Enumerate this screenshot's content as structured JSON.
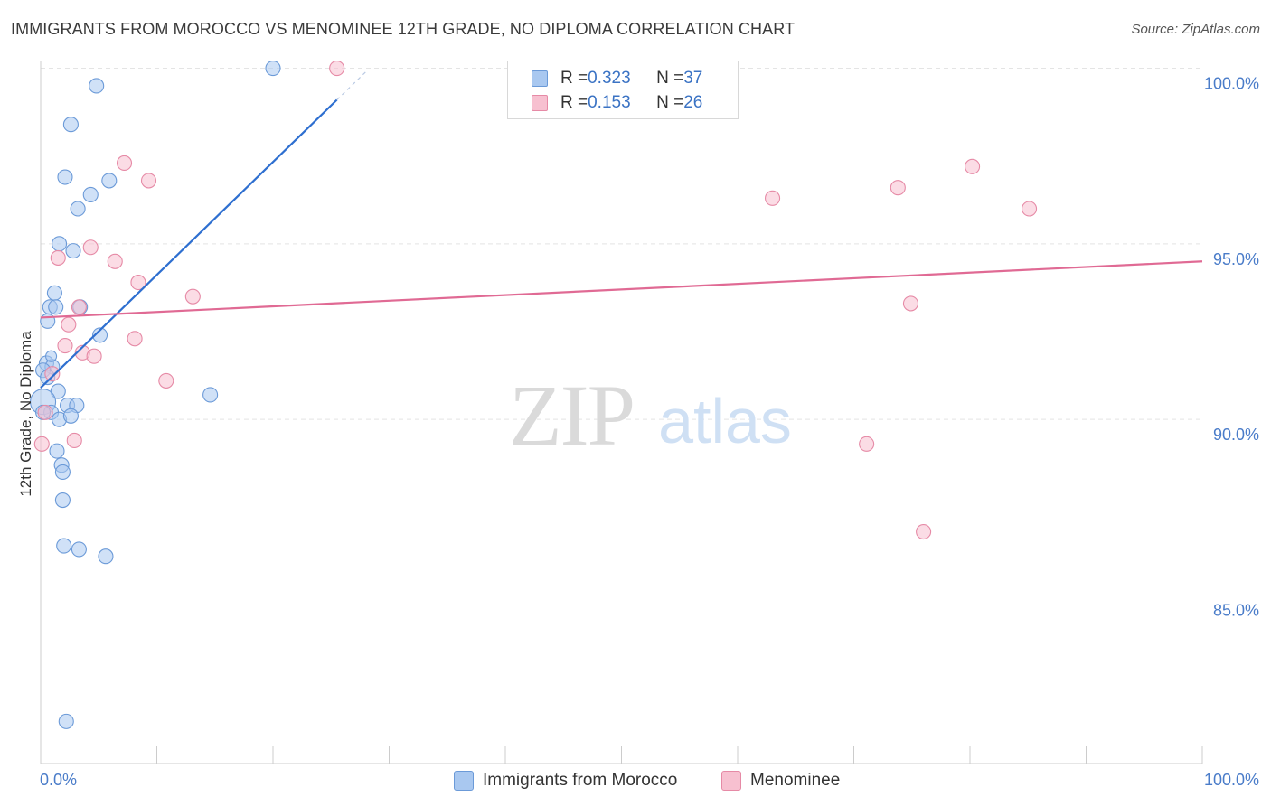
{
  "colors": {
    "blue_fill": "#a9c8f0",
    "blue_stroke": "#6b9ad8",
    "blue_line": "#2e6fd0",
    "pink_fill": "#f7c0d0",
    "pink_stroke": "#e68aa6",
    "pink_line": "#e06a94",
    "grid": "#e4e4e4",
    "axis_text": "#4a7cc9"
  },
  "chart_data": {
    "type": "scatter",
    "title": "IMMIGRANTS FROM MOROCCO VS MENOMINEE 12TH GRADE, NO DIPLOMA CORRELATION CHART",
    "source": "Source: ZipAtlas.com",
    "watermark": {
      "zip": "ZIP",
      "atlas": "atlas"
    },
    "ylabel": "12th Grade, No Diploma",
    "xlim": [
      0,
      100
    ],
    "ylim": [
      80.2,
      100.4
    ],
    "y_ticks": [
      {
        "value": 100,
        "label": "100.0%"
      },
      {
        "value": 95,
        "label": "95.0%"
      },
      {
        "value": 90,
        "label": "90.0%"
      },
      {
        "value": 85,
        "label": "85.0%"
      }
    ],
    "x_tick_labels": {
      "left": "0.0%",
      "right": "100.0%"
    },
    "x_minor_ticks": [
      0,
      10,
      20,
      30,
      40,
      50,
      60,
      70,
      80,
      90,
      100
    ],
    "legend": {
      "rows": [
        {
          "r_label": "R = ",
          "r_value": "0.323",
          "n_label": "N = ",
          "n_value": "37"
        },
        {
          "r_label": "R = ",
          "r_value": "0.153",
          "n_label": "N = ",
          "n_value": "26"
        }
      ]
    },
    "series": [
      {
        "name": "Immigrants from Morocco",
        "color": "blue",
        "trend": {
          "x0": 0,
          "y0": 90.9,
          "x1": 25.5,
          "y1": 99.1,
          "dash_to_x": 28.0,
          "dash_to_y": 99.9
        },
        "points": [
          {
            "x": 20.0,
            "y": 100.0,
            "r": 8
          },
          {
            "x": 4.8,
            "y": 99.5,
            "r": 8
          },
          {
            "x": 2.6,
            "y": 98.4,
            "r": 8
          },
          {
            "x": 2.1,
            "y": 96.9,
            "r": 8
          },
          {
            "x": 5.9,
            "y": 96.8,
            "r": 8
          },
          {
            "x": 4.3,
            "y": 96.4,
            "r": 8
          },
          {
            "x": 3.2,
            "y": 96.0,
            "r": 8
          },
          {
            "x": 1.6,
            "y": 95.0,
            "r": 8
          },
          {
            "x": 2.8,
            "y": 94.8,
            "r": 8
          },
          {
            "x": 1.2,
            "y": 93.6,
            "r": 8
          },
          {
            "x": 0.8,
            "y": 93.2,
            "r": 8
          },
          {
            "x": 1.3,
            "y": 93.2,
            "r": 8
          },
          {
            "x": 3.4,
            "y": 93.2,
            "r": 8
          },
          {
            "x": 0.6,
            "y": 92.8,
            "r": 8
          },
          {
            "x": 5.1,
            "y": 92.4,
            "r": 8
          },
          {
            "x": 0.5,
            "y": 91.6,
            "r": 8
          },
          {
            "x": 1.0,
            "y": 91.5,
            "r": 8
          },
          {
            "x": 0.2,
            "y": 91.4,
            "r": 8
          },
          {
            "x": 0.6,
            "y": 91.2,
            "r": 8
          },
          {
            "x": 1.5,
            "y": 90.8,
            "r": 8
          },
          {
            "x": 0.2,
            "y": 90.5,
            "r": 14
          },
          {
            "x": 14.6,
            "y": 90.7,
            "r": 8
          },
          {
            "x": 2.3,
            "y": 90.4,
            "r": 8
          },
          {
            "x": 3.1,
            "y": 90.4,
            "r": 8
          },
          {
            "x": 0.9,
            "y": 90.2,
            "r": 8
          },
          {
            "x": 1.6,
            "y": 90.0,
            "r": 8
          },
          {
            "x": 2.6,
            "y": 90.1,
            "r": 8
          },
          {
            "x": 1.4,
            "y": 89.1,
            "r": 8
          },
          {
            "x": 1.8,
            "y": 88.7,
            "r": 8
          },
          {
            "x": 1.9,
            "y": 88.5,
            "r": 8
          },
          {
            "x": 1.9,
            "y": 87.7,
            "r": 8
          },
          {
            "x": 2.0,
            "y": 86.4,
            "r": 8
          },
          {
            "x": 3.3,
            "y": 86.3,
            "r": 8
          },
          {
            "x": 5.6,
            "y": 86.1,
            "r": 8
          },
          {
            "x": 2.2,
            "y": 81.4,
            "r": 8
          },
          {
            "x": 0.2,
            "y": 90.2,
            "r": 8
          },
          {
            "x": 0.9,
            "y": 91.8,
            "r": 6
          }
        ]
      },
      {
        "name": "Menominee",
        "color": "pink",
        "trend": {
          "x0": 0,
          "y0": 92.9,
          "x1": 100,
          "y1": 94.5
        },
        "points": [
          {
            "x": 25.5,
            "y": 100.0,
            "r": 8
          },
          {
            "x": 7.2,
            "y": 97.3,
            "r": 8
          },
          {
            "x": 9.3,
            "y": 96.8,
            "r": 8
          },
          {
            "x": 63.0,
            "y": 96.3,
            "r": 8
          },
          {
            "x": 73.8,
            "y": 96.6,
            "r": 8
          },
          {
            "x": 80.2,
            "y": 97.2,
            "r": 8
          },
          {
            "x": 85.1,
            "y": 96.0,
            "r": 8
          },
          {
            "x": 1.5,
            "y": 94.6,
            "r": 8
          },
          {
            "x": 4.3,
            "y": 94.9,
            "r": 8
          },
          {
            "x": 6.4,
            "y": 94.5,
            "r": 8
          },
          {
            "x": 8.4,
            "y": 93.9,
            "r": 8
          },
          {
            "x": 13.1,
            "y": 93.5,
            "r": 8
          },
          {
            "x": 3.3,
            "y": 93.2,
            "r": 8
          },
          {
            "x": 74.9,
            "y": 93.3,
            "r": 8
          },
          {
            "x": 2.4,
            "y": 92.7,
            "r": 8
          },
          {
            "x": 8.1,
            "y": 92.3,
            "r": 8
          },
          {
            "x": 2.1,
            "y": 92.1,
            "r": 8
          },
          {
            "x": 3.6,
            "y": 91.9,
            "r": 8
          },
          {
            "x": 4.6,
            "y": 91.8,
            "r": 8
          },
          {
            "x": 1.0,
            "y": 91.3,
            "r": 8
          },
          {
            "x": 10.8,
            "y": 91.1,
            "r": 8
          },
          {
            "x": 0.4,
            "y": 90.2,
            "r": 8
          },
          {
            "x": 2.9,
            "y": 89.4,
            "r": 8
          },
          {
            "x": 71.1,
            "y": 89.3,
            "r": 8
          },
          {
            "x": 0.1,
            "y": 89.3,
            "r": 8
          },
          {
            "x": 76.0,
            "y": 86.8,
            "r": 8
          }
        ]
      }
    ]
  }
}
